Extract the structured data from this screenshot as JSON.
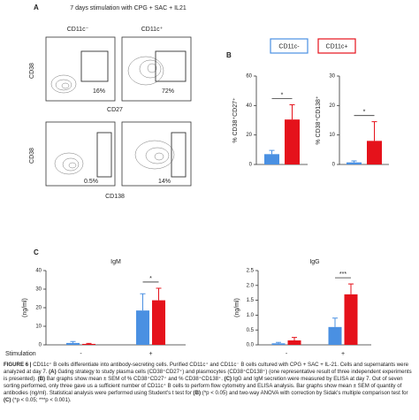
{
  "panel_a": {
    "label": "A",
    "title": "7 days stimulation with CPG + SAC + IL21",
    "columns": [
      "CD11c⁻",
      "CD11c⁺"
    ],
    "rows": [
      {
        "y_label": "CD38",
        "x_label": "CD27",
        "percentages": [
          "16%",
          "72%"
        ]
      },
      {
        "y_label": "CD38",
        "x_label": "CD138",
        "percentages": [
          "0.5%",
          "14%"
        ]
      }
    ]
  },
  "panel_b": {
    "label": "B",
    "legend": [
      {
        "name": "CD11c-",
        "color": "#4a90e2"
      },
      {
        "name": "CD11c+",
        "color": "#e5121b"
      }
    ],
    "charts": [
      {
        "type": "bar",
        "y_label": "% CD38⁺CD27⁺",
        "ylim": [
          0,
          60
        ],
        "yticks": [
          0,
          20,
          40,
          60
        ],
        "series": [
          {
            "name": "CD11c-",
            "color": "#4a90e2",
            "values": [
              7
            ],
            "errors": [
              2.5
            ]
          },
          {
            "name": "CD11c+",
            "color": "#e5121b",
            "values": [
              30.5
            ],
            "errors": [
              10
            ]
          }
        ],
        "significance": "*"
      },
      {
        "type": "bar",
        "y_label": "% CD38⁺CD138⁺",
        "ylim": [
          0,
          30
        ],
        "yticks": [
          0,
          10,
          20,
          30
        ],
        "series": [
          {
            "name": "CD11c-",
            "color": "#4a90e2",
            "values": [
              0.7
            ],
            "errors": [
              0.5
            ]
          },
          {
            "name": "CD11c+",
            "color": "#e5121b",
            "values": [
              8
            ],
            "errors": [
              6.5
            ]
          }
        ],
        "significance": "*"
      }
    ]
  },
  "panel_c": {
    "label": "C",
    "x_row_label": "Stimulation",
    "charts": [
      {
        "type": "bar",
        "title": "IgM",
        "y_label": "(ng/ml)",
        "ylim": [
          0,
          40
        ],
        "yticks": [
          0,
          10,
          20,
          30,
          40
        ],
        "categories": [
          "-",
          "+"
        ],
        "series": [
          {
            "name": "CD11c-",
            "color": "#4a90e2",
            "values": [
              1,
              18.5
            ],
            "errors": [
              0.8,
              9
            ]
          },
          {
            "name": "CD11c+",
            "color": "#e5121b",
            "values": [
              0.5,
              24
            ],
            "errors": [
              0.3,
              6.5
            ]
          }
        ],
        "significance": "*"
      },
      {
        "type": "bar",
        "title": "IgG",
        "y_label": "(ng/ml)",
        "ylim": [
          0,
          2.5
        ],
        "yticks": [
          {
            "value": 0,
            "label": "0.0"
          },
          0.5,
          {
            "value": 1,
            "label": "1.0"
          },
          1.5,
          {
            "value": 2,
            "label": "2.0"
          },
          2.5
        ],
        "categories": [
          "-",
          "+"
        ],
        "series": [
          {
            "name": "CD11c-",
            "color": "#4a90e2",
            "values": [
              0.05,
              0.6
            ],
            "errors": [
              0.03,
              0.3
            ]
          },
          {
            "name": "CD11c+",
            "color": "#e5121b",
            "values": [
              0.15,
              1.7
            ],
            "errors": [
              0.1,
              0.35
            ]
          }
        ],
        "significance": "***"
      }
    ]
  },
  "caption": [
    {
      "text": "FIGURE 6 | ",
      "bold": true
    },
    {
      "text": "CD11c⁺ B cells differentiate into antibody-secreting cells. Purified CD11c⁺ and CD11c⁻ B cells cultured with CPG + SAC + IL-21. Cells and supernatants were analyzed at day 7. ",
      "bold": false
    },
    {
      "text": "(A)",
      "bold": true
    },
    {
      "text": " Gating strategy to study plasma cells (CD38⁺CD27⁺) and plasmocytes (CD38⁺CD138⁺) (one representative result of three independent experiments is presented). ",
      "bold": false
    },
    {
      "text": "(B)",
      "bold": true
    },
    {
      "text": " Bar graphs show mean ± SEM of % CD38⁺CD27⁺ and % CD38⁺CD138⁺. ",
      "bold": false
    },
    {
      "text": "(C)",
      "bold": true
    },
    {
      "text": " IgG and IgM secretion were measured by ELISA at day 7. Out of seven sorting performed, only three gave us a sufficient number of CD11c⁺ B cells to perform flow cytometry and ELISA analysis. Bar graphs show mean ± SEM of quantity of antibodies (ng/ml). Statistical analysis were performed using Student's t test for ",
      "bold": false
    },
    {
      "text": "(B)",
      "bold": true
    },
    {
      "text": " (*p < 0.05) and two-way ANOVA with correction by Sidak's multiple comparison test for ",
      "bold": false
    },
    {
      "text": "(C)",
      "bold": true
    },
    {
      "text": " (*p < 0.05; ***p < 0.001).",
      "bold": false
    }
  ]
}
